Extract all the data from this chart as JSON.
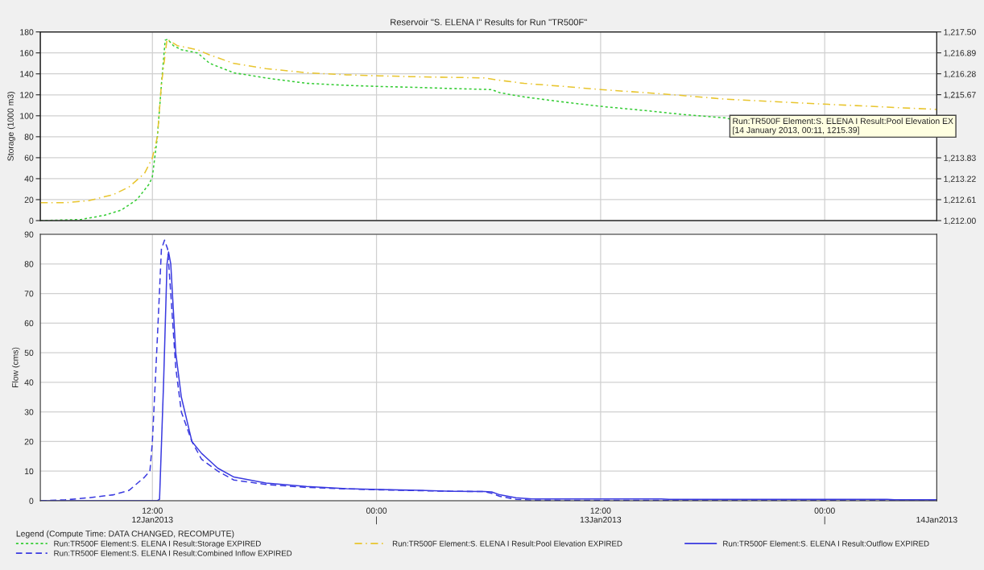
{
  "chart_data": [
    {
      "type": "line",
      "title": "Reservoir \"S. ELENA I\" Results for Run \"TR500F\"",
      "ylabel": "Storage (1000 m3)",
      "xlim": [
        "2013-01-12T06:00",
        "2013-01-14T06:00"
      ],
      "xticks": [
        {
          "value": "2013-01-12T12:00",
          "label": null
        },
        {
          "value": "2013-01-13T00:00",
          "label": null
        },
        {
          "value": "2013-01-13T12:00",
          "label": null
        },
        {
          "value": "2013-01-14T00:00",
          "label": null
        }
      ],
      "ylim": [
        0,
        180
      ],
      "yticks": [
        0,
        20,
        40,
        60,
        80,
        100,
        120,
        140,
        160,
        180
      ],
      "y2lim": [
        1212.0,
        1217.5
      ],
      "y2ticks": [
        {
          "value": 1212.0,
          "label": "1,212.00"
        },
        {
          "value": 1212.61,
          "label": "1,212.61"
        },
        {
          "value": 1213.22,
          "label": "1,213.22"
        },
        {
          "value": 1213.83,
          "label": "1,213.83"
        },
        {
          "value": 1214.44,
          "label": null
        },
        {
          "value": 1215.06,
          "label": null
        },
        {
          "value": 1215.67,
          "label": "1,215.67"
        },
        {
          "value": 1216.28,
          "label": "1,216.28"
        },
        {
          "value": 1216.89,
          "label": "1,216.89"
        },
        {
          "value": 1217.5,
          "label": "1,217.50"
        }
      ],
      "tick_labels": "y",
      "grid": true,
      "legend": "bottom",
      "series": [
        {
          "name": "Run:TR500F Element:S. ELENA I Result:Storage EXPIRED",
          "color": "#33cc33",
          "line_style": "dotted",
          "x": [
            "2013-01-12T06:00",
            "2013-01-12T08:10",
            "2013-01-12T09:25",
            "2013-01-12T10:20",
            "2013-01-12T11:10",
            "2013-01-12T11:50",
            "2013-01-12T12:00",
            "2013-01-12T12:16",
            "2013-01-12T12:29",
            "2013-01-12T12:41",
            "2013-01-12T12:49",
            "2013-01-12T13:07",
            "2013-01-12T13:33",
            "2013-01-12T14:25",
            "2013-01-12T15:04",
            "2013-01-12T16:22",
            "2013-01-12T18:05",
            "2013-01-12T20:15",
            "2013-01-12T22:24",
            "2013-01-13T00:08",
            "2013-01-13T02:17",
            "2013-01-13T04:01",
            "2013-01-13T06:10",
            "2013-01-13T06:36",
            "2013-01-13T07:54",
            "2013-01-13T10:04",
            "2013-01-13T12:00",
            "2013-01-13T14:23",
            "2013-01-13T16:32",
            "2013-01-13T18:42",
            "2013-01-13T18:54"
          ],
          "values": [
            0,
            1,
            5,
            10,
            20,
            35,
            42,
            80,
            130,
            172,
            173,
            167,
            163,
            160,
            150,
            141,
            136,
            131,
            129,
            128,
            127,
            126,
            125,
            122,
            118,
            113,
            109,
            105,
            101,
            98,
            97
          ]
        },
        {
          "name": "Run:TR500F Element:S. ELENA I Result:Pool Elevation EXPIRED",
          "color": "#e8c52e",
          "line_style": "dashdot",
          "axis": "y2",
          "x": [
            "2013-01-12T06:00",
            "2013-01-12T07:20",
            "2013-01-12T08:35",
            "2013-01-12T09:55",
            "2013-01-12T10:45",
            "2013-01-12T11:35",
            "2013-01-12T12:00",
            "2013-01-12T12:16",
            "2013-01-12T12:29",
            "2013-01-12T12:47",
            "2013-01-12T13:20",
            "2013-01-12T14:25",
            "2013-01-12T15:04",
            "2013-01-12T16:22",
            "2013-01-12T18:05",
            "2013-01-12T20:15",
            "2013-01-12T22:24",
            "2013-01-13T00:08",
            "2013-01-13T02:17",
            "2013-01-13T05:45",
            "2013-01-13T06:36",
            "2013-01-13T07:54",
            "2013-01-13T10:04",
            "2013-01-13T12:00",
            "2013-01-13T14:23",
            "2013-01-13T16:32",
            "2013-01-13T18:42",
            "2013-01-14T00:11",
            "2013-01-14T06:00"
          ],
          "values": [
            1212.52,
            1212.52,
            1212.58,
            1212.76,
            1212.98,
            1213.38,
            1213.83,
            1214.44,
            1215.97,
            1217.29,
            1217.1,
            1216.98,
            1216.83,
            1216.58,
            1216.43,
            1216.31,
            1216.25,
            1216.22,
            1216.19,
            1216.16,
            1216.09,
            1216.0,
            1215.91,
            1215.82,
            1215.73,
            1215.64,
            1215.54,
            1215.39,
            1215.24
          ]
        }
      ],
      "annotations": [
        "Run:TR500F Element:S. ELENA I Result:Pool Elevation EX\n[14 January 2013, 00:11, 1215.39]"
      ]
    },
    {
      "type": "line",
      "ylabel": "Flow (cms)",
      "xlim": [
        "2013-01-12T06:00",
        "2013-01-14T06:00"
      ],
      "xticks": [
        {
          "value": "2013-01-12T12:00",
          "label": "12:00\n12Jan2013"
        },
        {
          "value": "2013-01-13T00:00",
          "label": "00:00\n|"
        },
        {
          "value": "2013-01-13T12:00",
          "label": "12:00\n13Jan2013"
        },
        {
          "value": "2013-01-14T00:00",
          "label": "00:00\n|"
        },
        {
          "value": "2013-01-14T06:00",
          "label": "\n14Jan2013"
        }
      ],
      "ylim": [
        0,
        90
      ],
      "yticks": [
        0,
        10,
        20,
        30,
        40,
        50,
        60,
        70,
        80,
        90
      ],
      "grid": true,
      "legend": "bottom",
      "legend_title": "Legend (Compute Time: DATA CHANGED, RECOMPUTE)",
      "series": [
        {
          "name": "Run:TR500F Element:S. ELENA I Result:Outflow EXPIRED",
          "color": "#3a3ae0",
          "line_style": "solid",
          "x": [
            "2013-01-12T06:00",
            "2013-01-12T12:16",
            "2013-01-12T12:23",
            "2013-01-12T12:36",
            "2013-01-12T12:47",
            "2013-01-12T12:52",
            "2013-01-12T12:59",
            "2013-01-12T13:15",
            "2013-01-12T13:33",
            "2013-01-12T14:07",
            "2013-01-12T14:38",
            "2013-01-12T15:30",
            "2013-01-12T16:22",
            "2013-01-12T18:05",
            "2013-01-12T20:15",
            "2013-01-12T22:24",
            "2013-01-13T00:08",
            "2013-01-13T02:17",
            "2013-01-13T04:01",
            "2013-01-13T05:45",
            "2013-01-13T06:10",
            "2013-01-13T06:36",
            "2013-01-13T07:28",
            "2013-01-13T08:20",
            "2013-01-13T12:00",
            "2013-01-13T15:15",
            "2013-01-13T15:40",
            "2013-01-14T03:20",
            "2013-01-14T03:45",
            "2013-01-14T06:00"
          ],
          "values": [
            0,
            0,
            0.5,
            40,
            80,
            84,
            80,
            50,
            35,
            20,
            16,
            11,
            8,
            6,
            4.8,
            4.1,
            3.8,
            3.5,
            3.2,
            3.1,
            3.0,
            2.0,
            1.0,
            0.6,
            0.6,
            0.6,
            0.5,
            0.5,
            0.3,
            0.3
          ]
        },
        {
          "name": "Run:TR500F Element:S. ELENA I Result:Combined Inflow EXPIRED",
          "color": "#3a3ae0",
          "line_style": "dashed",
          "x": [
            "2013-01-12T06:00",
            "2013-01-12T07:20",
            "2013-01-12T08:35",
            "2013-01-12T09:55",
            "2013-01-12T10:45",
            "2013-01-12T11:35",
            "2013-01-12T11:52",
            "2013-01-12T12:00",
            "2013-01-12T12:16",
            "2013-01-12T12:29",
            "2013-01-12T12:39",
            "2013-01-12T12:49",
            "2013-01-12T12:59",
            "2013-01-12T13:15",
            "2013-01-12T13:33",
            "2013-01-12T14:07",
            "2013-01-12T14:38",
            "2013-01-12T15:30",
            "2013-01-12T16:22",
            "2013-01-12T18:05",
            "2013-01-12T20:15",
            "2013-01-12T22:24",
            "2013-01-13T00:08",
            "2013-01-13T02:17",
            "2013-01-13T04:01",
            "2013-01-13T05:45",
            "2013-01-13T06:10",
            "2013-01-13T06:36",
            "2013-01-13T07:28",
            "2013-01-13T08:20",
            "2013-01-13T12:00",
            "2013-01-14T06:00"
          ],
          "values": [
            0,
            0.3,
            1,
            2,
            3.5,
            8,
            10,
            20,
            55,
            85,
            88,
            85,
            70,
            45,
            30,
            20,
            14,
            10,
            7,
            5.5,
            4.5,
            4.0,
            3.7,
            3.4,
            3.2,
            3.1,
            2.5,
            1.5,
            0.5,
            0.2,
            0.1,
            0.1
          ]
        }
      ]
    }
  ]
}
